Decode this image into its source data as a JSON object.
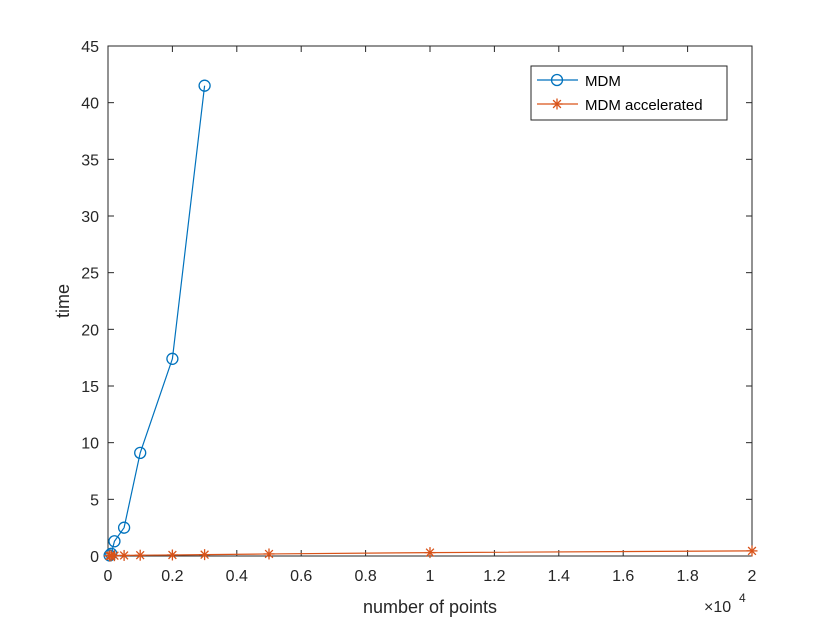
{
  "chart_data": {
    "type": "line",
    "title": "",
    "xlabel": "number of points",
    "ylabel": "time",
    "x_multiplier_label": "×10",
    "x_multiplier_exponent": "4",
    "xlim": [
      0,
      2
    ],
    "ylim": [
      0,
      45
    ],
    "x_ticks": [
      "0",
      "0.2",
      "0.4",
      "0.6",
      "0.8",
      "1",
      "1.2",
      "1.4",
      "1.6",
      "1.8",
      "2"
    ],
    "y_ticks": [
      "0",
      "5",
      "10",
      "15",
      "20",
      "25",
      "30",
      "35",
      "40",
      "45"
    ],
    "x_tick_values": [
      0,
      0.2,
      0.4,
      0.6,
      0.8,
      1,
      1.2,
      1.4,
      1.6,
      1.8,
      2
    ],
    "y_tick_values": [
      0,
      5,
      10,
      15,
      20,
      25,
      30,
      35,
      40,
      45
    ],
    "grid": false,
    "legend_position": "top-right",
    "series": [
      {
        "name": "MDM",
        "color": "#0072BD",
        "marker": "circle",
        "x": [
          0.005,
          0.01,
          0.02,
          0.05,
          0.1,
          0.2,
          0.3
        ],
        "y": [
          0.05,
          0.2,
          1.3,
          2.5,
          9.1,
          17.4,
          41.5
        ]
      },
      {
        "name": "MDM accelerated",
        "color": "#D95319",
        "marker": "asterisk",
        "x": [
          0.005,
          0.01,
          0.02,
          0.05,
          0.1,
          0.2,
          0.3,
          0.5,
          1,
          2
        ],
        "y": [
          0.01,
          0.02,
          0.03,
          0.05,
          0.07,
          0.09,
          0.12,
          0.18,
          0.3,
          0.45
        ]
      }
    ]
  }
}
